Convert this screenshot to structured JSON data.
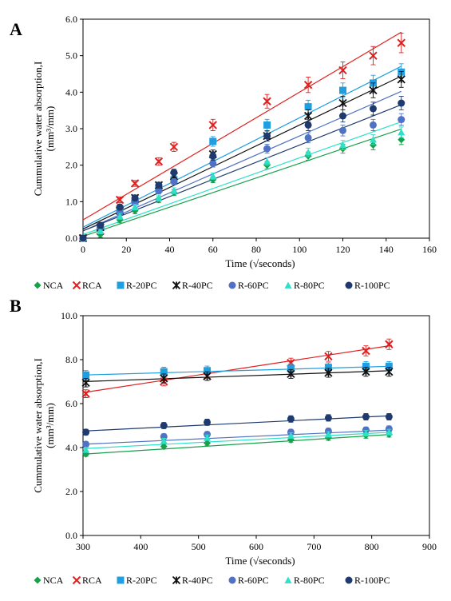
{
  "panels": [
    "A",
    "B"
  ],
  "chart_data": [
    {
      "type": "scatter",
      "panel": "A",
      "title": "",
      "xlabel": "Time (√seconds)",
      "ylabel": "Cummulative water absorption,I (mm³/mm)",
      "xlim": [
        0,
        160
      ],
      "ylim": [
        0,
        6
      ],
      "xticks": [
        "0",
        "20",
        "40",
        "60",
        "80",
        "100",
        "120",
        "140",
        "160"
      ],
      "yticks": [
        "0.0",
        "1.0",
        "2.0",
        "3.0",
        "4.0",
        "5.0",
        "6.0"
      ],
      "legend_position": "bottom",
      "error_bars": true,
      "fit_lines": true,
      "series": [
        {
          "name": "NCA",
          "color": "#18a04a",
          "marker": "diamond",
          "x": [
            0,
            8,
            17,
            24,
            35,
            42,
            60,
            85,
            104,
            120,
            134,
            147
          ],
          "y": [
            0.0,
            0.1,
            0.5,
            0.75,
            1.05,
            1.25,
            1.6,
            2.0,
            2.25,
            2.45,
            2.55,
            2.7
          ],
          "fit": [
            0.05,
            0.02
          ]
        },
        {
          "name": "RCA",
          "color": "#e02020",
          "marker": "x",
          "x": [
            0,
            8,
            17,
            24,
            35,
            42,
            60,
            85,
            104,
            120,
            134,
            147
          ],
          "y": [
            0.0,
            0.2,
            1.05,
            1.5,
            2.1,
            2.5,
            3.1,
            3.75,
            4.2,
            4.6,
            5.0,
            5.35
          ],
          "fit": [
            0.5,
            0.035
          ]
        },
        {
          "name": "R-20PC",
          "color": "#1f9fe0",
          "marker": "square",
          "x": [
            0,
            8,
            17,
            24,
            35,
            42,
            60,
            85,
            104,
            120,
            134,
            147
          ],
          "y": [
            0.0,
            0.3,
            0.8,
            1.0,
            1.35,
            1.6,
            2.65,
            3.1,
            3.6,
            4.05,
            4.25,
            4.55
          ],
          "fit": [
            0.3,
            0.03
          ]
        },
        {
          "name": "R-40PC",
          "color": "#111111",
          "marker": "star",
          "x": [
            0,
            8,
            17,
            24,
            35,
            42,
            60,
            85,
            104,
            120,
            134,
            147
          ],
          "y": [
            0.0,
            0.3,
            0.75,
            1.1,
            1.45,
            1.7,
            2.3,
            2.8,
            3.35,
            3.7,
            4.05,
            4.35
          ],
          "fit": [
            0.25,
            0.0285
          ]
        },
        {
          "name": "R-60PC",
          "color": "#4f72c4",
          "marker": "circle",
          "x": [
            0,
            8,
            17,
            24,
            35,
            42,
            60,
            85,
            104,
            120,
            134,
            147
          ],
          "y": [
            0.0,
            0.3,
            0.7,
            1.0,
            1.3,
            1.55,
            2.05,
            2.45,
            2.75,
            2.95,
            3.1,
            3.25
          ],
          "fit": [
            0.2,
            0.026
          ]
        },
        {
          "name": "R-80PC",
          "color": "#2de0c8",
          "marker": "triangle",
          "x": [
            0,
            8,
            17,
            24,
            35,
            42,
            60,
            85,
            104,
            120,
            134,
            147
          ],
          "y": [
            0.0,
            0.2,
            0.6,
            0.85,
            1.1,
            1.3,
            1.7,
            2.1,
            2.35,
            2.55,
            2.7,
            2.9
          ],
          "fit": [
            0.1,
            0.021
          ]
        },
        {
          "name": "R-100PC",
          "color": "#1e3a6e",
          "marker": "circle",
          "x": [
            0,
            8,
            17,
            24,
            35,
            42,
            60,
            85,
            104,
            120,
            134,
            147
          ],
          "y": [
            0.0,
            0.35,
            0.85,
            1.1,
            1.45,
            1.8,
            2.25,
            2.8,
            3.1,
            3.35,
            3.55,
            3.7
          ],
          "fit": [
            0.2,
            0.0235
          ]
        }
      ]
    },
    {
      "type": "scatter",
      "panel": "B",
      "title": "",
      "xlabel": "Time (√seconds)",
      "ylabel": "Cummulative water absorption,I (mm³/mm)",
      "xlim": [
        300,
        900
      ],
      "ylim": [
        0,
        10
      ],
      "xticks": [
        "300",
        "400",
        "500",
        "600",
        "700",
        "800",
        "900"
      ],
      "yticks": [
        "0.0",
        "2.0",
        "4.0",
        "6.0",
        "8.0",
        "10.0"
      ],
      "legend_position": "bottom",
      "error_bars": true,
      "fit_lines": true,
      "series": [
        {
          "name": "NCA",
          "color": "#18a04a",
          "marker": "diamond",
          "x": [
            305,
            440,
            515,
            660,
            725,
            790,
            830
          ],
          "y": [
            3.7,
            4.05,
            4.2,
            4.35,
            4.45,
            4.55,
            4.6
          ],
          "fit": [
            3.7,
            4.6
          ]
        },
        {
          "name": "RCA",
          "color": "#e02020",
          "marker": "x",
          "x": [
            305,
            440,
            515,
            660,
            725,
            790,
            830
          ],
          "y": [
            6.45,
            7.0,
            7.25,
            7.85,
            8.15,
            8.4,
            8.7
          ],
          "fit": [
            6.5,
            8.65
          ]
        },
        {
          "name": "R-20PC",
          "color": "#1f9fe0",
          "marker": "square",
          "x": [
            305,
            440,
            515,
            660,
            725,
            790,
            830
          ],
          "y": [
            7.3,
            7.45,
            7.5,
            7.6,
            7.65,
            7.7,
            7.7
          ],
          "fit": [
            7.3,
            7.7
          ]
        },
        {
          "name": "R-40PC",
          "color": "#111111",
          "marker": "star",
          "x": [
            305,
            440,
            515,
            660,
            725,
            790,
            830
          ],
          "y": [
            6.95,
            7.15,
            7.25,
            7.35,
            7.4,
            7.45,
            7.45
          ],
          "fit": [
            7.0,
            7.5
          ]
        },
        {
          "name": "R-60PC",
          "color": "#4f72c4",
          "marker": "circle",
          "x": [
            305,
            440,
            515,
            660,
            725,
            790,
            830
          ],
          "y": [
            4.15,
            4.5,
            4.6,
            4.7,
            4.75,
            4.8,
            4.85
          ],
          "fit": [
            4.15,
            4.8
          ]
        },
        {
          "name": "R-80PC",
          "color": "#2de0c8",
          "marker": "triangle",
          "x": [
            305,
            440,
            515,
            660,
            725,
            790,
            830
          ],
          "y": [
            3.9,
            4.3,
            4.45,
            4.55,
            4.6,
            4.65,
            4.7
          ],
          "fit": [
            3.95,
            4.7
          ]
        },
        {
          "name": "R-100PC",
          "color": "#1e3a6e",
          "marker": "circle",
          "x": [
            305,
            440,
            515,
            660,
            725,
            790,
            830
          ],
          "y": [
            4.7,
            5.0,
            5.15,
            5.3,
            5.35,
            5.4,
            5.4
          ],
          "fit": [
            4.75,
            5.45
          ]
        }
      ]
    }
  ]
}
